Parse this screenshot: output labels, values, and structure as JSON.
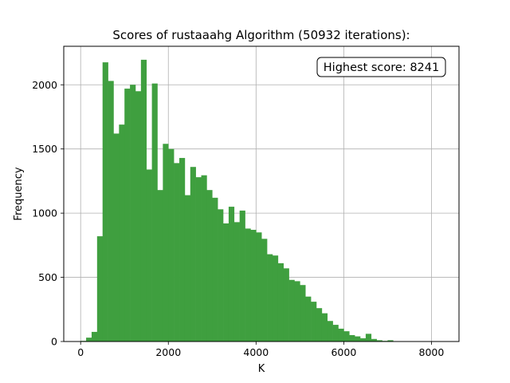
{
  "chart_data": {
    "type": "bar",
    "title": "Scores of rustaaahg Algorithm (50932 iterations):",
    "xlabel": "K",
    "ylabel": "Frequency",
    "xlim": [
      -385,
      8628
    ],
    "ylim": [
      0,
      2300
    ],
    "xticks": [
      0,
      2000,
      4000,
      6000,
      8000
    ],
    "yticks": [
      0,
      500,
      1000,
      1500,
      2000
    ],
    "grid": true,
    "bar_color": "#3f9f3f",
    "annotation": "Highest score: 8241",
    "annotation_position": "top-right",
    "bin_start": 0,
    "bin_width": 125,
    "values": [
      5,
      30,
      75,
      820,
      2175,
      2030,
      1620,
      1690,
      1970,
      2000,
      1950,
      2195,
      1340,
      2010,
      1180,
      1540,
      1500,
      1390,
      1430,
      1140,
      1360,
      1280,
      1295,
      1180,
      1120,
      1030,
      920,
      1050,
      930,
      1020,
      880,
      870,
      850,
      800,
      680,
      670,
      610,
      570,
      480,
      470,
      440,
      350,
      310,
      260,
      220,
      160,
      130,
      100,
      80,
      50,
      40,
      25,
      60,
      20,
      10,
      5,
      10,
      3,
      2,
      1,
      1,
      1,
      1,
      0,
      0,
      1,
      1
    ]
  }
}
